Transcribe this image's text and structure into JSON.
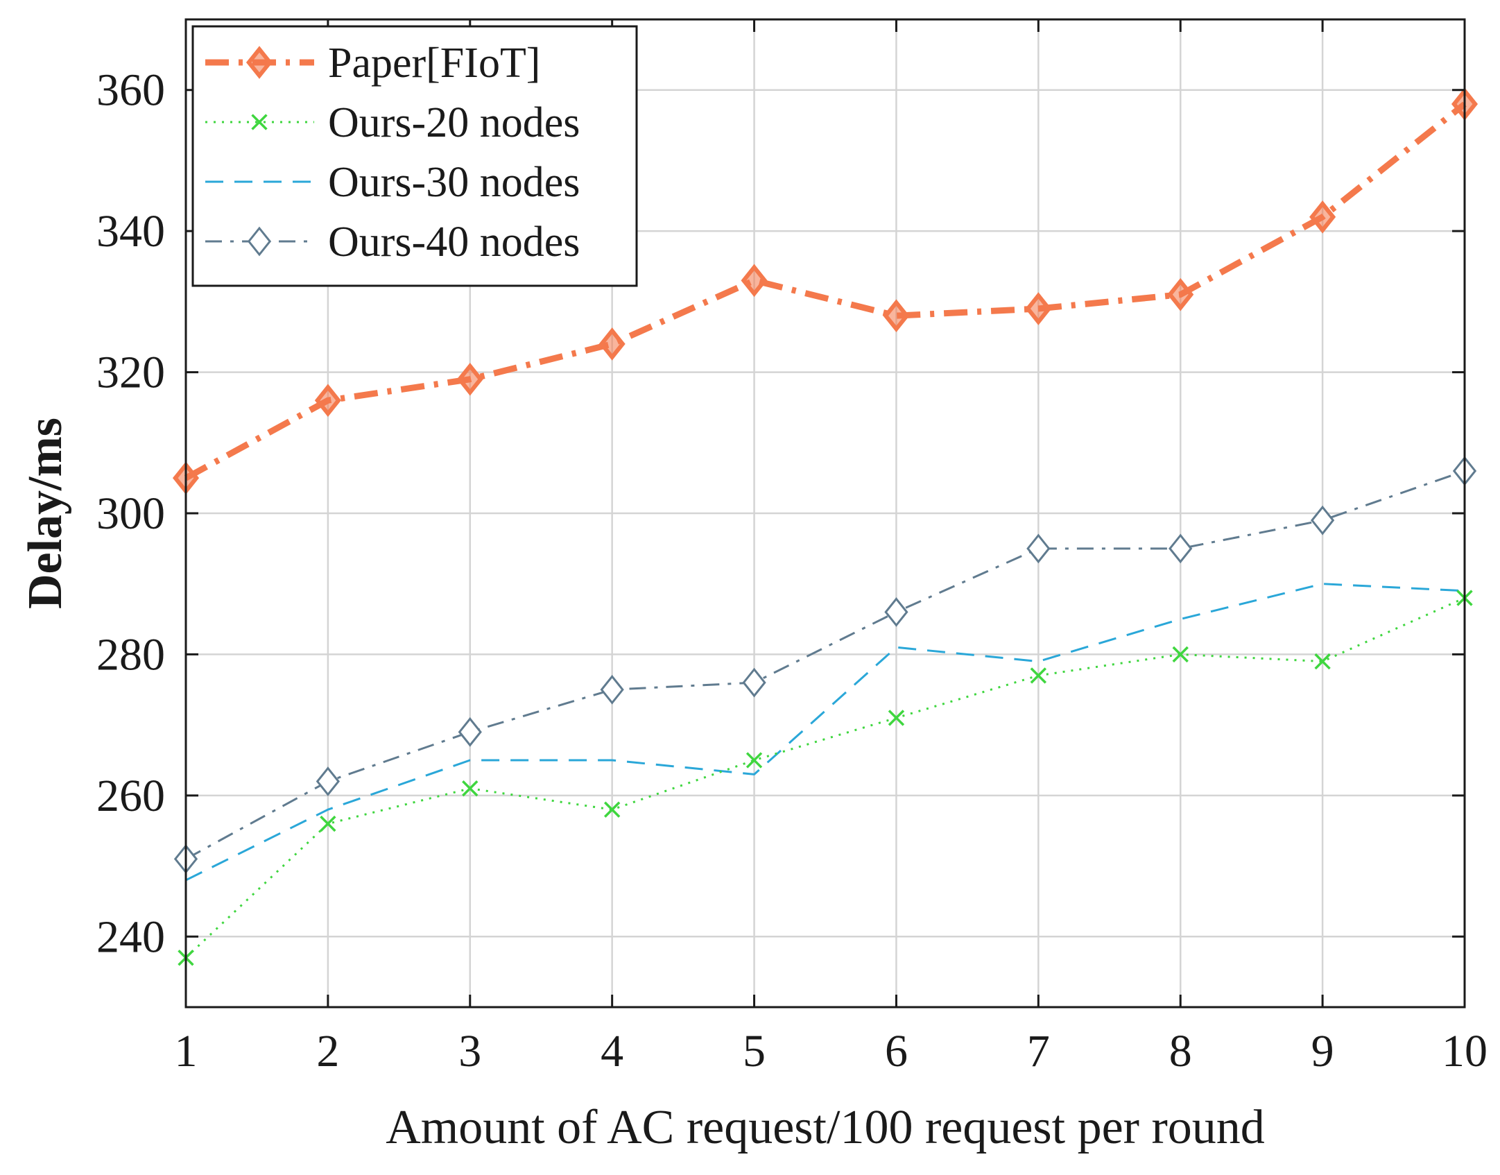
{
  "chart_data": {
    "type": "line",
    "title": "",
    "xlabel": "Amount of AC request/100 request per round",
    "ylabel": "Delay/ms",
    "x": [
      1,
      2,
      3,
      4,
      5,
      6,
      7,
      8,
      9,
      10
    ],
    "xlim": [
      1,
      10
    ],
    "ylim": [
      230,
      370
    ],
    "xticks": [
      1,
      2,
      3,
      4,
      5,
      6,
      7,
      8,
      9,
      10
    ],
    "yticks": [
      240,
      260,
      280,
      300,
      320,
      340,
      360
    ],
    "grid": true,
    "legend_position": "top-left",
    "series": [
      {
        "name": "Paper[FIoT]",
        "color": "#f4794c",
        "line_style": "dash-dot",
        "marker": "diamond-filled",
        "values": [
          305,
          316,
          319,
          324,
          333,
          328,
          329,
          331,
          342,
          358
        ]
      },
      {
        "name": "Ours-20 nodes",
        "color": "#3fd63f",
        "line_style": "dotted",
        "marker": "x",
        "values": [
          237,
          256,
          261,
          258,
          265,
          271,
          277,
          280,
          279,
          288
        ]
      },
      {
        "name": "Ours-30 nodes",
        "color": "#2aa7d8",
        "line_style": "dashed",
        "marker": "none",
        "values": [
          248,
          258,
          265,
          265,
          263,
          281,
          279,
          285,
          290,
          289
        ]
      },
      {
        "name": "Ours-40 nodes",
        "color": "#607b8f",
        "line_style": "dash-dot",
        "marker": "diamond-open",
        "values": [
          251,
          262,
          269,
          275,
          276,
          286,
          295,
          295,
          299,
          306
        ]
      }
    ]
  }
}
